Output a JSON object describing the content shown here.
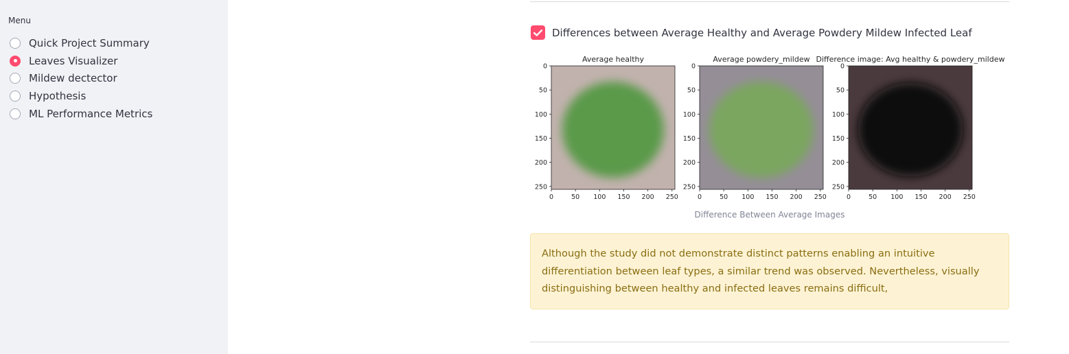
{
  "sidebar": {
    "menu_label": "Menu",
    "items": [
      {
        "label": "Quick Project Summary",
        "selected": false
      },
      {
        "label": "Leaves Visualizer",
        "selected": true
      },
      {
        "label": "Mildew dectector",
        "selected": false
      },
      {
        "label": "Hypothesis",
        "selected": false
      },
      {
        "label": "ML Performance Metrics",
        "selected": false
      }
    ]
  },
  "main": {
    "checkbox": {
      "label": "Differences between Average Healthy and Average Powdery Mildew Infected Leaf",
      "checked": true
    },
    "figure_caption": "Difference Between Average Images",
    "warning_text": "Although the study did not demonstrate distinct patterns enabling an intuitive differentiation between leaf types, a similar trend was observed. Nevertheless, visually distinguishing between healthy and infected leaves remains difficult,"
  },
  "figure": {
    "panels": [
      {
        "title": "Average healthy",
        "bg": "#c2b2ae",
        "center": "#5a9a4a"
      },
      {
        "title": "Average powdery_mildew",
        "bg": "#958e97",
        "center": "#7aa65e"
      },
      {
        "title": "Difference image: Avg healthy & powdery_mildew",
        "bg": "#4a3a3e",
        "center": "#0e0f0a"
      }
    ],
    "ticks": [
      "0",
      "50",
      "100",
      "150",
      "200",
      "250"
    ]
  },
  "colors": {
    "accent": "#ff4b6e",
    "sidebar_bg": "#f0f2f6",
    "warning_bg": "#fdf3d4",
    "warning_text": "#8a6d12"
  }
}
